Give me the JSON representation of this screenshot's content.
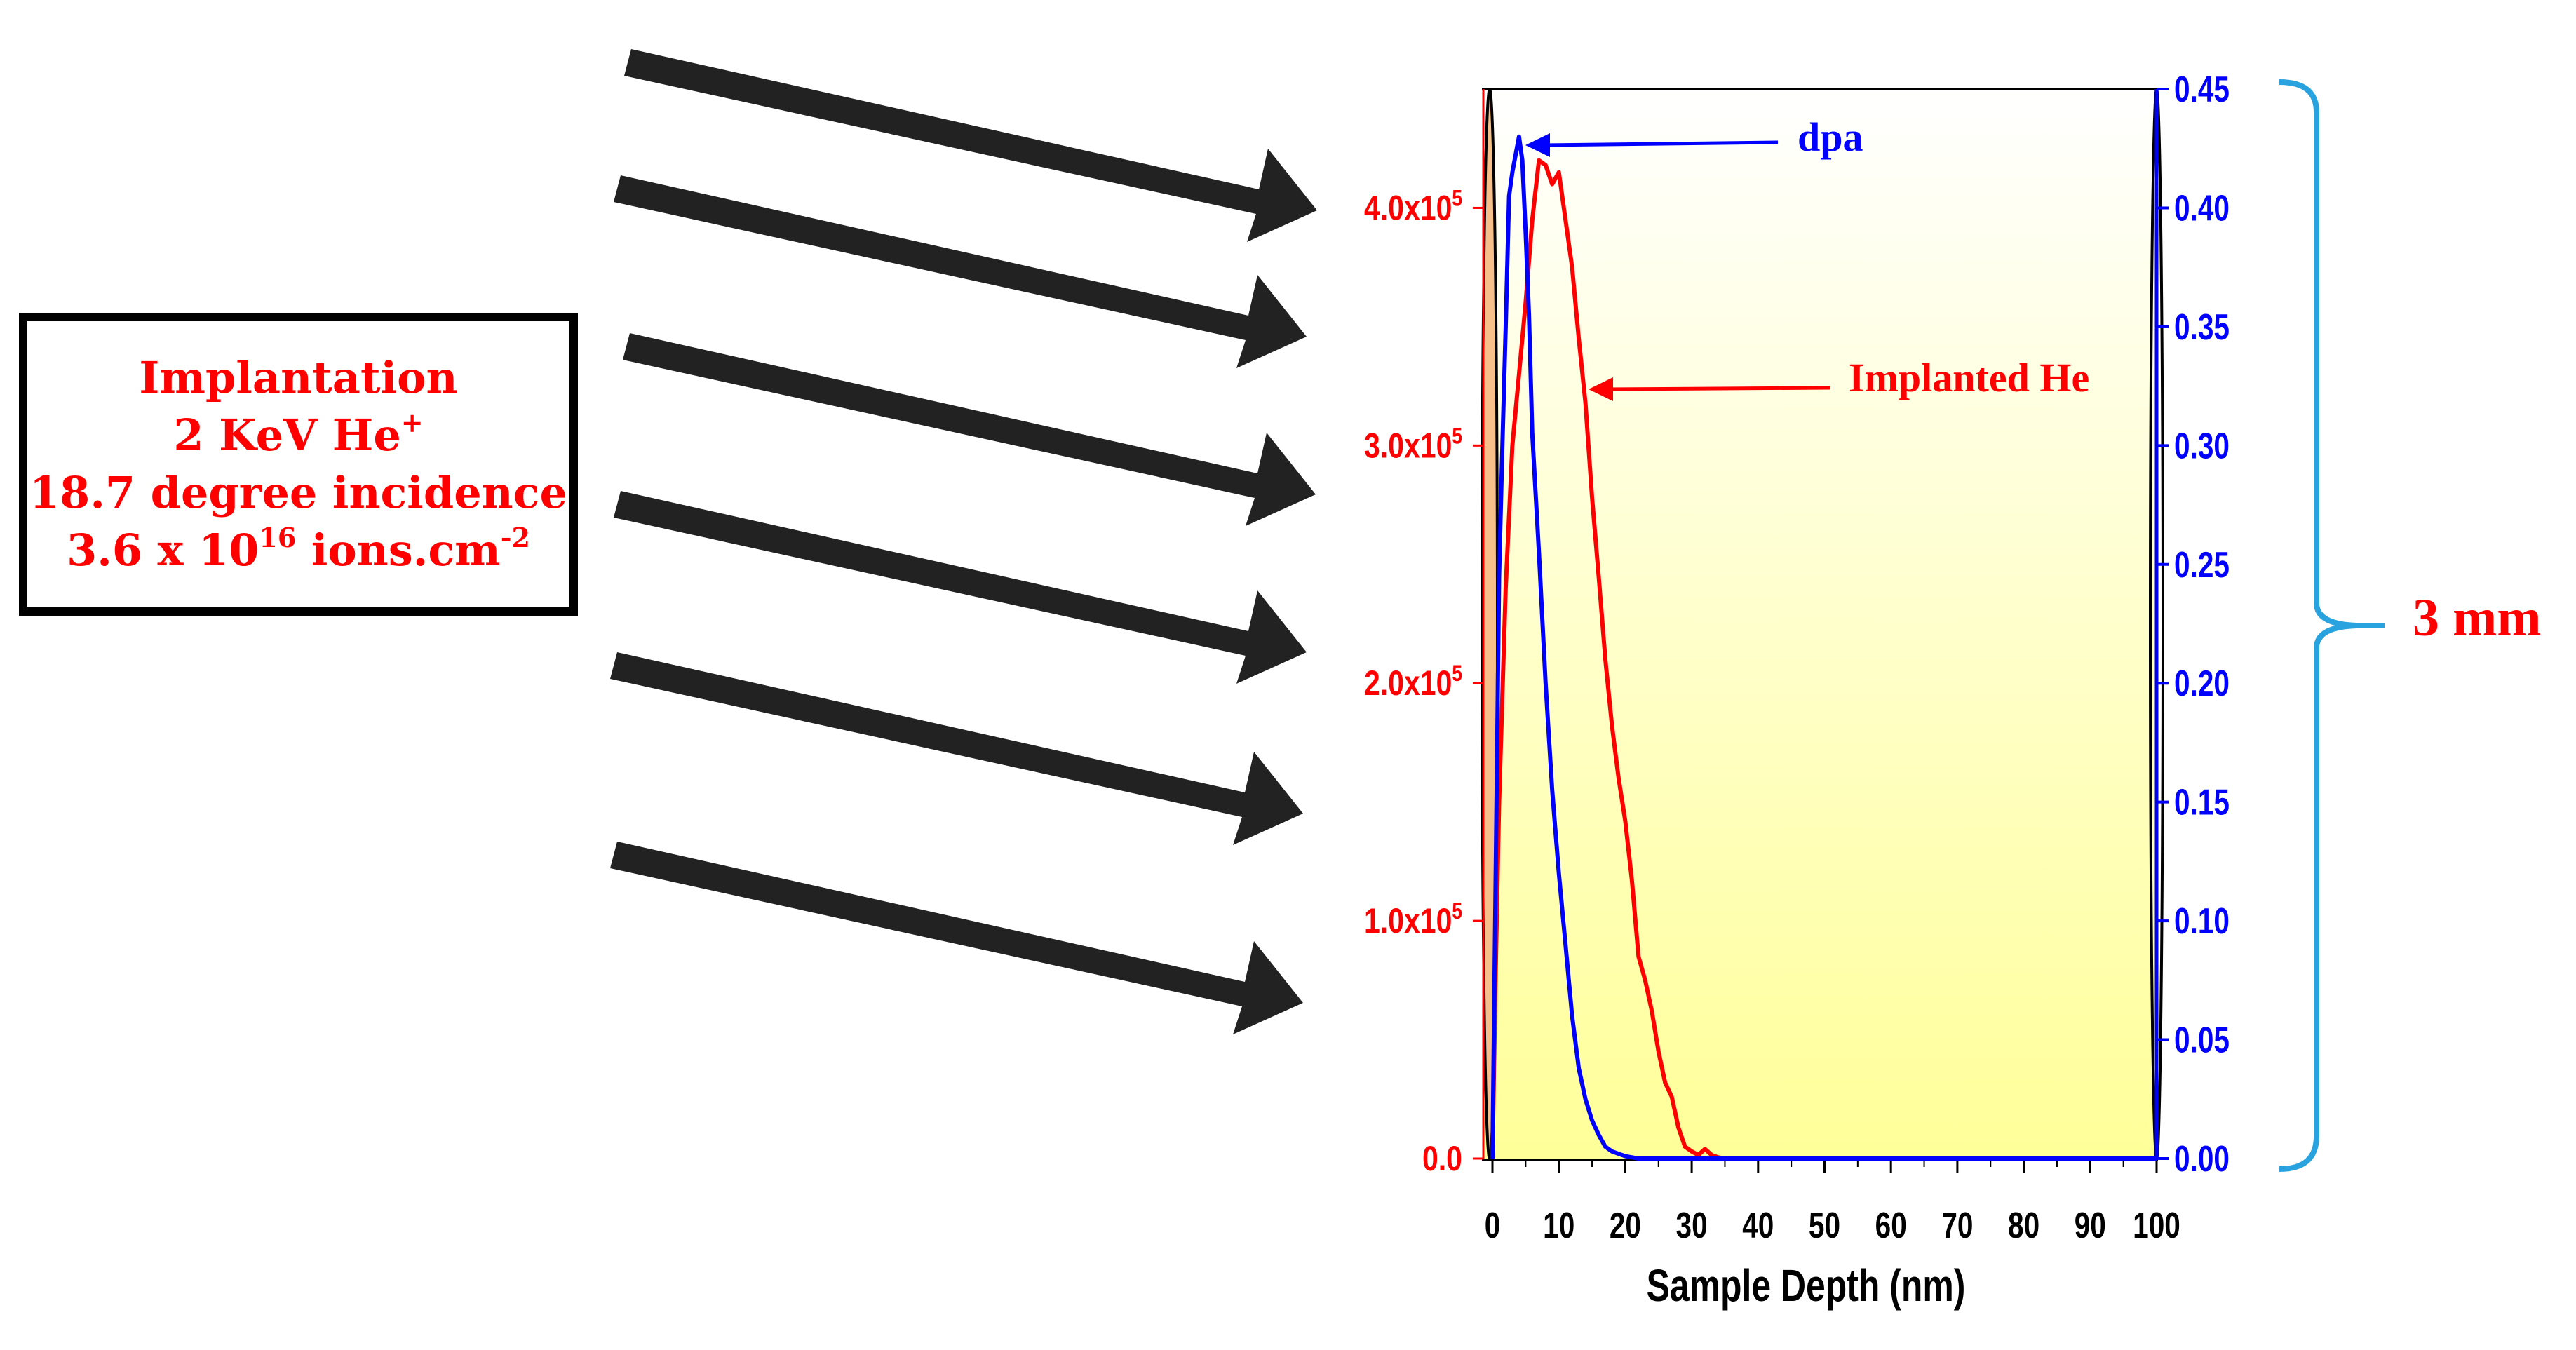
{
  "info_box": {
    "line1": "Implantation",
    "line2_main": "2 KeV He",
    "line2_sup": "+",
    "line3": "18.7 degree incidence",
    "line4_pre": "3.6 x 10",
    "line4_sup": "16",
    "line4_post": " ions.cm",
    "line4_sup2": "-2"
  },
  "scale_label": "3 mm",
  "colors": {
    "he_series": "#ff0000",
    "dpa_series": "#0000ff",
    "bracket": "#29a3e0",
    "arrows": "#222222",
    "sample_fill": "#f7c08a",
    "bg_top": "#ffffff",
    "bg_bottom": "#ffff99"
  },
  "chart_data": {
    "type": "line",
    "xlabel": "Sample Depth (nm)",
    "xlim": [
      0,
      100
    ],
    "xticks": [
      0,
      10,
      20,
      30,
      40,
      50,
      60,
      70,
      80,
      90,
      100
    ],
    "y_left": {
      "lim": [
        0,
        450000
      ],
      "ticks": [
        {
          "value": 0,
          "base": "0.0",
          "sup": ""
        },
        {
          "value": 100000,
          "base": "1.0x10",
          "sup": "5"
        },
        {
          "value": 200000,
          "base": "2.0x10",
          "sup": "5"
        },
        {
          "value": 300000,
          "base": "3.0x10",
          "sup": "5"
        },
        {
          "value": 400000,
          "base": "4.0x10",
          "sup": "5"
        }
      ],
      "color": "#ff0000"
    },
    "y_right": {
      "lim": [
        0,
        0.45
      ],
      "ticks": [
        "0.00",
        "0.05",
        "0.10",
        "0.15",
        "0.20",
        "0.25",
        "0.30",
        "0.35",
        "0.40",
        "0.45"
      ],
      "color": "#0000ff"
    },
    "series": [
      {
        "name": "Implanted He",
        "axis": "left",
        "color": "#ff0000",
        "x": [
          0,
          0.5,
          1,
          1.5,
          2,
          3,
          4,
          5,
          6,
          7,
          8,
          9,
          10,
          11,
          12,
          13,
          14,
          15,
          16,
          17,
          18,
          19,
          20,
          21,
          22,
          23,
          24,
          25,
          26,
          27,
          28,
          29,
          30,
          31,
          32,
          33,
          34,
          35,
          100
        ],
        "y": [
          0,
          80000,
          150000,
          195000,
          240000,
          300000,
          330000,
          360000,
          395000,
          420000,
          418000,
          410000,
          415000,
          395000,
          375000,
          345000,
          318000,
          278000,
          245000,
          210000,
          182000,
          160000,
          142000,
          117000,
          85000,
          75000,
          62000,
          45000,
          32000,
          26000,
          13000,
          5000,
          3000,
          1500,
          4000,
          1500,
          500,
          0,
          0
        ]
      },
      {
        "name": "dpa",
        "axis": "right",
        "color": "#0000ff",
        "x": [
          0,
          1,
          1.5,
          2,
          2.5,
          3,
          4,
          4.5,
          5,
          5.5,
          6,
          7,
          8,
          9,
          10,
          11,
          12,
          13,
          14,
          15,
          16,
          17,
          18,
          19,
          20,
          22,
          100
        ],
        "y": [
          0,
          0.245,
          0.3,
          0.35,
          0.405,
          0.415,
          0.43,
          0.42,
          0.39,
          0.355,
          0.305,
          0.255,
          0.2,
          0.155,
          0.12,
          0.09,
          0.06,
          0.038,
          0.025,
          0.016,
          0.01,
          0.005,
          0.003,
          0.002,
          0.001,
          0,
          0
        ]
      }
    ],
    "annotations": [
      "dpa",
      "Implanted He"
    ],
    "grid": false
  }
}
